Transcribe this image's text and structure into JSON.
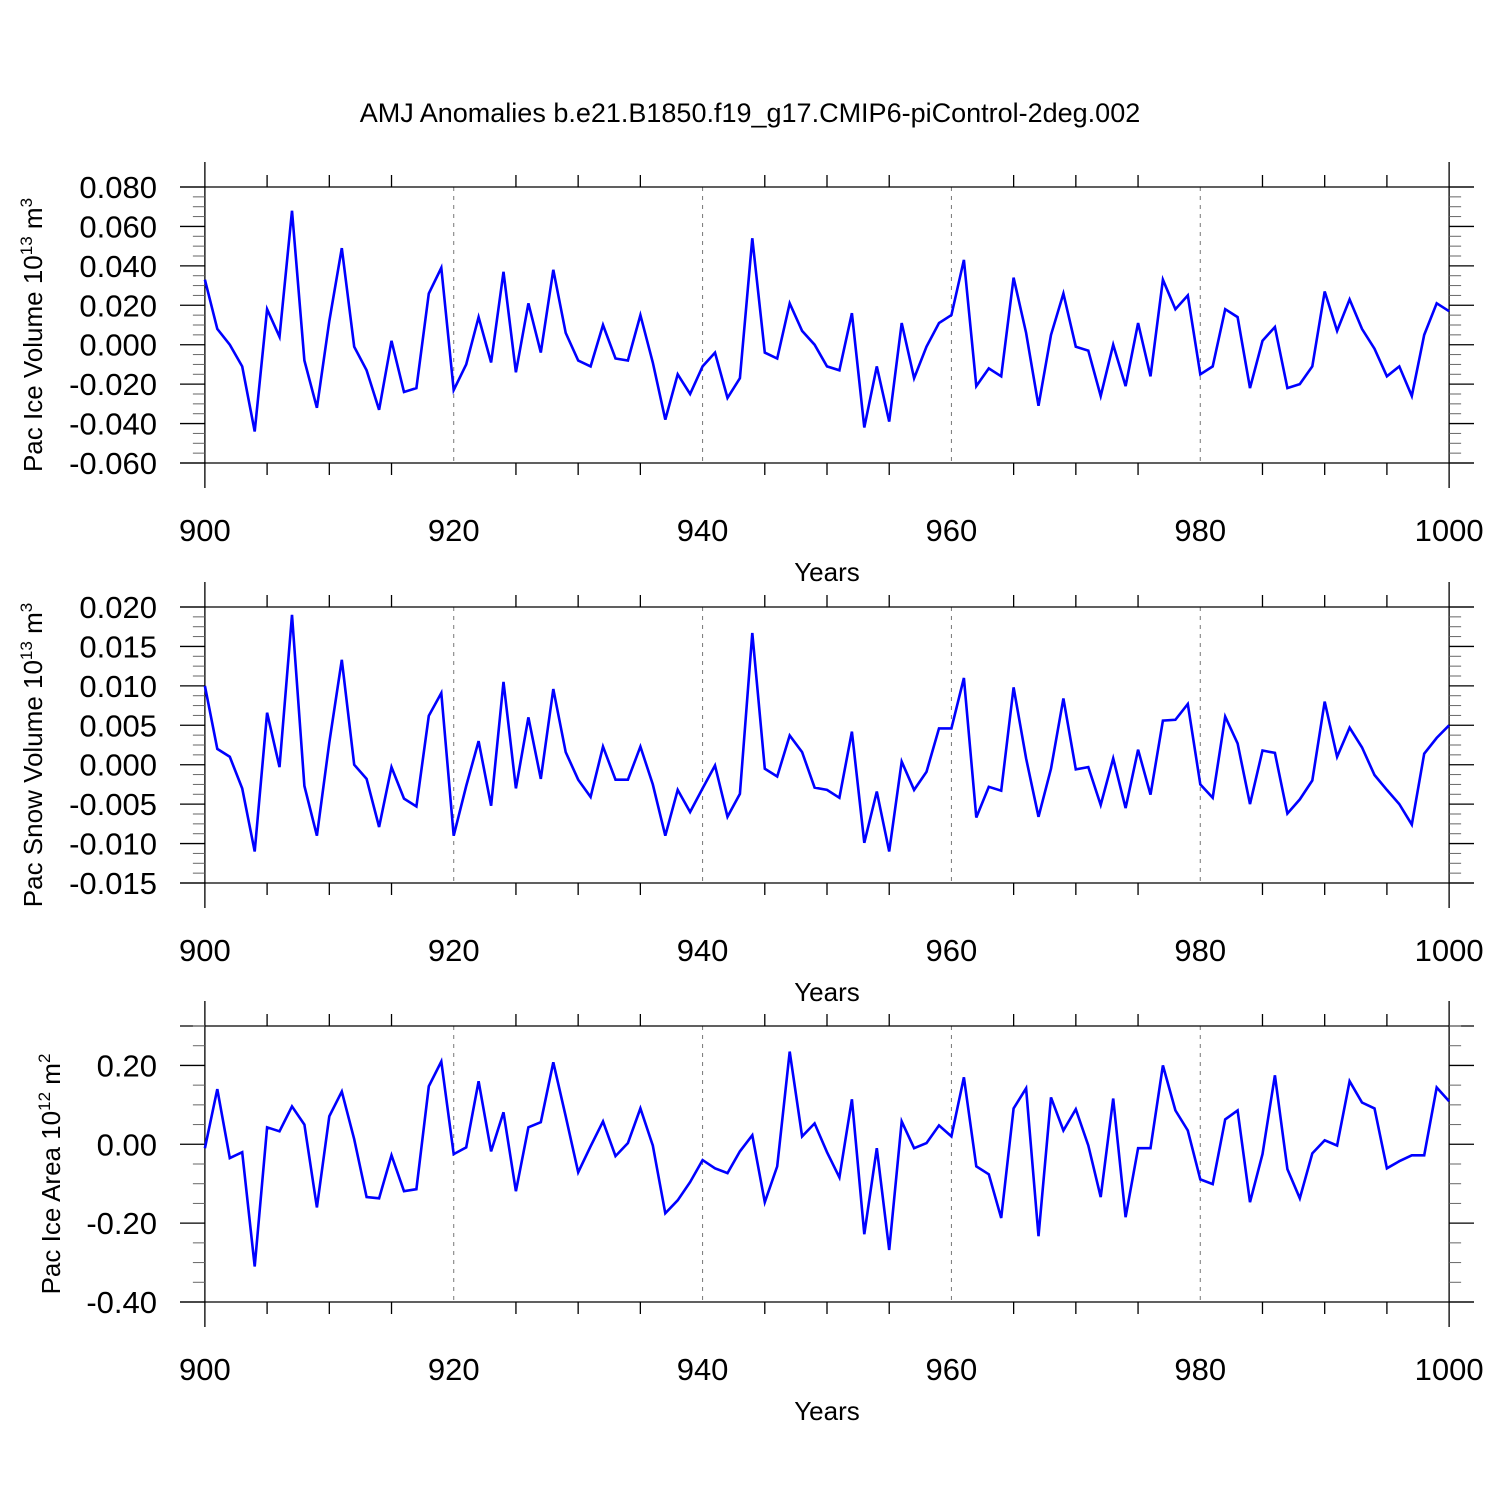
{
  "title": "AMJ Anomalies b.e21.B1850.f19_g17.CMIP6-piControl-2deg.002",
  "line_color": "#0000ff",
  "chart_data": [
    {
      "type": "line",
      "ylabel": "Pac Ice Volume 10",
      "ylabel_exp": "13",
      "ylabel_unit": " m",
      "ylabel_unit_exp": "3",
      "xlabel": "Years",
      "xlim": [
        898,
        1002
      ],
      "ylim": [
        -0.06,
        0.08
      ],
      "xticks": [
        900,
        920,
        940,
        960,
        980,
        1000
      ],
      "xtick_labels": [
        "900",
        "920",
        "940",
        "960",
        "980",
        "1000"
      ],
      "yticks": [
        -0.06,
        -0.04,
        -0.02,
        0,
        0.02,
        0.04,
        0.06,
        0.08
      ],
      "ytick_labels": [
        "-0.060",
        "-0.040",
        "-0.020",
        "0.000",
        "0.020",
        "0.040",
        "0.060",
        "0.080"
      ],
      "yminor": 0.005,
      "x_start": 900,
      "values": [
        0.033,
        0.008,
        0.0,
        -0.011,
        -0.044,
        0.018,
        0.004,
        0.068,
        -0.008,
        -0.032,
        0.012,
        0.049,
        -0.001,
        -0.013,
        -0.033,
        0.002,
        -0.024,
        -0.022,
        0.026,
        0.039,
        -0.023,
        -0.01,
        0.014,
        -0.009,
        0.037,
        -0.014,
        0.021,
        -0.004,
        0.038,
        0.006,
        -0.008,
        -0.011,
        0.01,
        -0.007,
        -0.008,
        0.015,
        -0.009,
        -0.038,
        -0.015,
        -0.025,
        -0.011,
        -0.004,
        -0.027,
        -0.017,
        0.054,
        -0.004,
        -0.007,
        0.021,
        0.007,
        0.0,
        -0.011,
        -0.013,
        0.016,
        -0.042,
        -0.011,
        -0.039,
        0.011,
        -0.017,
        -0.001,
        0.011,
        0.015,
        0.043,
        -0.021,
        -0.012,
        -0.016,
        0.034,
        0.006,
        -0.031,
        0.005,
        0.026,
        -0.001,
        -0.003,
        -0.026,
        0.0,
        -0.021,
        0.011,
        -0.016,
        0.033,
        0.018,
        0.025,
        -0.015,
        -0.011,
        0.018,
        0.014,
        -0.022,
        0.002,
        0.009,
        -0.022,
        -0.02,
        -0.011,
        0.027,
        0.007,
        0.023,
        0.008,
        -0.002,
        -0.016,
        -0.011,
        -0.026,
        0.005,
        0.021,
        0.017
      ]
    },
    {
      "type": "line",
      "ylabel": "Pac Snow Volume 10",
      "ylabel_exp": "13",
      "ylabel_unit": " m",
      "ylabel_unit_exp": "3",
      "xlabel": "Years",
      "xlim": [
        898,
        1002
      ],
      "ylim": [
        -0.015,
        0.02
      ],
      "xticks": [
        900,
        920,
        940,
        960,
        980,
        1000
      ],
      "xtick_labels": [
        "900",
        "920",
        "940",
        "960",
        "980",
        "1000"
      ],
      "yticks": [
        -0.015,
        -0.01,
        -0.005,
        0,
        0.005,
        0.01,
        0.015,
        0.02
      ],
      "ytick_labels": [
        "-0.015",
        "-0.010",
        "-0.005",
        "0.000",
        "0.005",
        "0.010",
        "0.015",
        "0.020"
      ],
      "yminor": 0.00125,
      "x_start": 900,
      "values": [
        0.01,
        0.002,
        0.001,
        -0.003,
        -0.011,
        0.0066,
        -0.0003,
        0.019,
        -0.0027,
        -0.009,
        0.0028,
        0.0133,
        0.0,
        -0.0018,
        -0.0079,
        -0.0003,
        -0.0043,
        -0.0053,
        0.0062,
        0.0091,
        -0.009,
        -0.0027,
        0.003,
        -0.0052,
        0.0105,
        -0.003,
        0.006,
        -0.0018,
        0.0096,
        0.0016,
        -0.0019,
        -0.0041,
        0.0023,
        -0.0019,
        -0.0019,
        0.0023,
        -0.0025,
        -0.009,
        -0.0032,
        -0.006,
        -0.003,
        -0.0001,
        -0.0066,
        -0.0037,
        0.0167,
        -0.0005,
        -0.0015,
        0.0037,
        0.0016,
        -0.0029,
        -0.0032,
        -0.0042,
        0.0042,
        -0.0099,
        -0.0034,
        -0.011,
        0.0004,
        -0.0032,
        -0.0009,
        0.0046,
        0.0046,
        0.011,
        -0.0067,
        -0.0028,
        -0.0033,
        0.0098,
        0.0008,
        -0.0066,
        -0.0005,
        0.0084,
        -0.0006,
        -0.0003,
        -0.0051,
        0.0008,
        -0.0055,
        0.0019,
        -0.0038,
        0.0056,
        0.0057,
        0.0077,
        -0.0025,
        -0.0042,
        0.0061,
        0.0027,
        -0.005,
        0.0018,
        0.0015,
        -0.0062,
        -0.0044,
        -0.002,
        0.008,
        0.001,
        0.0047,
        0.0022,
        -0.0013,
        -0.0032,
        -0.005,
        -0.0076,
        0.0014,
        0.0034,
        0.005
      ]
    },
    {
      "type": "line",
      "ylabel": "Pac Ice Area 10",
      "ylabel_exp": "12",
      "ylabel_unit": " m",
      "ylabel_unit_exp": "2",
      "xlabel": "Years",
      "xlim": [
        898,
        1002
      ],
      "ylim": [
        -0.4,
        0.3
      ],
      "xticks": [
        900,
        920,
        940,
        960,
        980,
        1000
      ],
      "xtick_labels": [
        "900",
        "920",
        "940",
        "960",
        "980",
        "1000"
      ],
      "yticks": [
        -0.4,
        -0.2,
        0,
        0.2
      ],
      "ytick_labels": [
        "-0.40",
        "-0.20",
        "0.00",
        "0.20"
      ],
      "yminor": 0.05,
      "x_start": 900,
      "values": [
        -0.01,
        0.14,
        -0.035,
        -0.02,
        -0.31,
        0.043,
        0.033,
        0.096,
        0.05,
        -0.16,
        0.071,
        0.134,
        0.013,
        -0.134,
        -0.137,
        -0.028,
        -0.119,
        -0.114,
        0.147,
        0.21,
        -0.025,
        -0.008,
        0.16,
        -0.018,
        0.081,
        -0.119,
        0.043,
        0.056,
        0.208,
        0.071,
        -0.071,
        -0.005,
        0.058,
        -0.03,
        0.003,
        0.091,
        -0.003,
        -0.175,
        -0.142,
        -0.096,
        -0.04,
        -0.061,
        -0.073,
        -0.018,
        0.023,
        -0.147,
        -0.056,
        0.235,
        0.02,
        0.053,
        -0.02,
        -0.084,
        0.114,
        -0.228,
        -0.01,
        -0.268,
        0.058,
        -0.01,
        0.003,
        0.048,
        0.02,
        0.17,
        -0.056,
        -0.076,
        -0.187,
        0.091,
        0.142,
        -0.233,
        0.119,
        0.035,
        0.089,
        -0.003,
        -0.134,
        0.116,
        -0.185,
        -0.01,
        -0.01,
        0.2,
        0.086,
        0.035,
        -0.089,
        -0.101,
        0.063,
        0.086,
        -0.147,
        -0.025,
        0.175,
        -0.063,
        -0.137,
        -0.023,
        0.01,
        -0.003,
        0.16,
        0.106,
        0.091,
        -0.061,
        -0.043,
        -0.028,
        -0.028,
        0.144,
        0.109
      ]
    }
  ]
}
